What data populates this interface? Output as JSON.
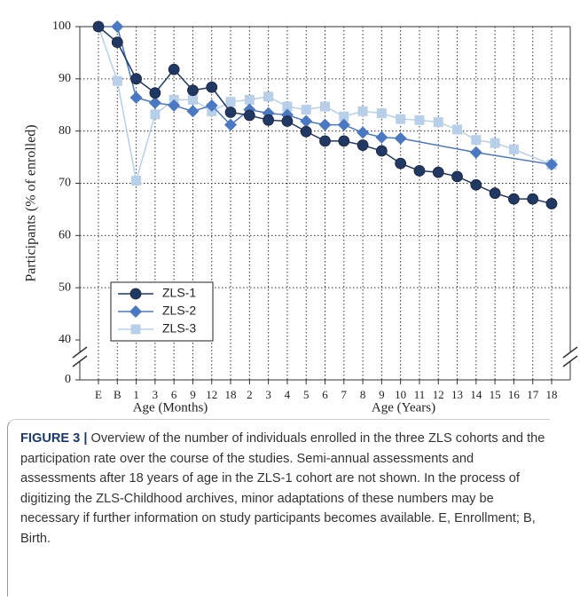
{
  "chart_data": {
    "type": "line",
    "ylabel": "Participants (% of enrolled)",
    "xlabels": [
      "Age (Months)",
      "Age (Years)"
    ],
    "categories": [
      "E",
      "B",
      "1",
      "3",
      "6",
      "9",
      "12",
      "18",
      "2",
      "3",
      "4",
      "5",
      "6",
      "7",
      "8",
      "9",
      "10",
      "11",
      "12",
      "13",
      "14",
      "15",
      "16",
      "17",
      "18"
    ],
    "series": [
      {
        "name": "ZLS-1",
        "color": "#1f3864",
        "marker": "circle",
        "values": [
          100,
          97,
          90,
          87.3,
          91.8,
          87.8,
          88.4,
          83.6,
          83,
          82.1,
          81.9,
          79.9,
          78.1,
          78.1,
          77.3,
          76.2,
          73.8,
          72.4,
          72.1,
          71.3,
          69.7,
          68.1,
          67,
          67,
          66.1
        ]
      },
      {
        "name": "ZLS-2",
        "color": "#4a78c2",
        "marker": "diamond",
        "values": [
          100,
          100,
          86.4,
          85.4,
          84.9,
          83.8,
          84.9,
          81.2,
          84.1,
          83.4,
          83.1,
          81.9,
          81.2,
          81.2,
          79.7,
          78.8,
          78.6,
          null,
          null,
          null,
          75.9,
          null,
          null,
          null,
          73.6
        ]
      },
      {
        "name": "ZLS-3",
        "color": "#b7cfe8",
        "marker": "square",
        "values": [
          100,
          89.6,
          70.5,
          83.2,
          86,
          86,
          83.8,
          85.6,
          86,
          86.6,
          84.7,
          84.1,
          84.7,
          82.8,
          83.8,
          83.4,
          82.3,
          82.1,
          81.7,
          80.3,
          78.3,
          77.7,
          76.5,
          null,
          73.6
        ]
      }
    ],
    "ylim": [
      0,
      100
    ],
    "ybreak": [
      0,
      40
    ],
    "yticks": [
      0,
      40,
      50,
      60,
      70,
      80,
      90,
      100
    ],
    "grid": true,
    "connect_gaps": true,
    "legend": "lower-left"
  },
  "caption": {
    "label": "FIGURE 3 |",
    "text": "Overview of the number of individuals enrolled in the three ZLS cohorts and the participation rate over the course of the studies. Semi-annual assessments and assessments after 18 years of age in the ZLS-1 cohort are not shown. In the process of digitizing the ZLS-Childhood archives, minor adaptations of these numbers may be necessary if further information on study participants becomes available. E, Enrollment; B, Birth."
  }
}
